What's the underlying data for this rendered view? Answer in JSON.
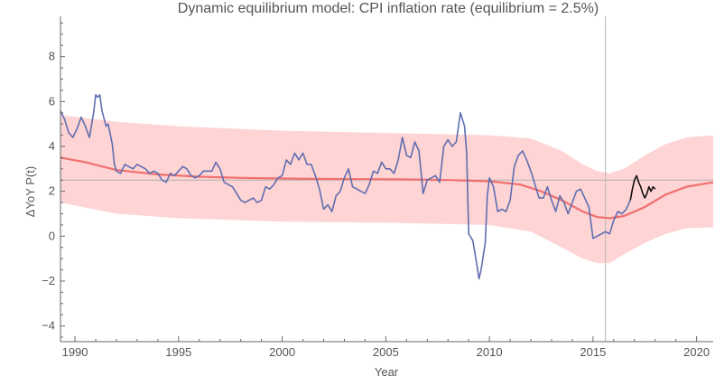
{
  "chart_data": {
    "type": "line",
    "title": "Dynamic equilibrium model: CPI inflation rate (equilibrium = 2.5%)",
    "xlabel": "Year",
    "ylabel": "ΔYoY P(t)",
    "xlim": [
      1989.3,
      2020.8
    ],
    "ylim": [
      -4.7,
      9.8
    ],
    "x_ticks": [
      1990,
      1995,
      2000,
      2005,
      2010,
      2015,
      2020
    ],
    "y_ticks": [
      -4,
      -2,
      0,
      2,
      4,
      6,
      8
    ],
    "x_tick_labels": [
      "1990",
      "1995",
      "2000",
      "2005",
      "2010",
      "2015",
      "2020"
    ],
    "y_tick_labels": [
      "−4",
      "−2",
      "0",
      "2",
      "4",
      "6",
      "8"
    ],
    "equilibrium_level": 2.5,
    "vertical_marker_x": 2015.6,
    "colors": {
      "data": "#5f6eb0",
      "post_data": "#111111",
      "model": "#f07070",
      "band": "#ffcccc"
    },
    "series": [
      {
        "values": [
          [
            1989.3,
            5.6
          ],
          [
            1989.5,
            5.2
          ],
          [
            1989.7,
            4.6
          ],
          [
            1989.9,
            4.4
          ],
          [
            1990.1,
            4.8
          ],
          [
            1990.3,
            5.3
          ],
          [
            1990.5,
            4.9
          ],
          [
            1990.7,
            4.4
          ],
          [
            1990.9,
            5.5
          ],
          [
            1991.0,
            6.3
          ],
          [
            1991.1,
            6.2
          ],
          [
            1991.2,
            6.3
          ],
          [
            1991.3,
            5.6
          ],
          [
            1991.5,
            4.9
          ],
          [
            1991.6,
            5.0
          ],
          [
            1991.8,
            4.1
          ],
          [
            1991.9,
            3.2
          ],
          [
            1992.0,
            2.9
          ],
          [
            1992.2,
            2.8
          ],
          [
            1992.4,
            3.2
          ],
          [
            1992.6,
            3.1
          ],
          [
            1992.8,
            3.0
          ],
          [
            1993.0,
            3.2
          ],
          [
            1993.2,
            3.1
          ],
          [
            1993.4,
            3.0
          ],
          [
            1993.6,
            2.8
          ],
          [
            1993.8,
            2.9
          ],
          [
            1994.0,
            2.8
          ],
          [
            1994.2,
            2.5
          ],
          [
            1994.4,
            2.4
          ],
          [
            1994.6,
            2.8
          ],
          [
            1994.8,
            2.7
          ],
          [
            1995.0,
            2.9
          ],
          [
            1995.2,
            3.1
          ],
          [
            1995.4,
            3.0
          ],
          [
            1995.6,
            2.7
          ],
          [
            1995.8,
            2.6
          ],
          [
            1996.0,
            2.7
          ],
          [
            1996.2,
            2.9
          ],
          [
            1996.4,
            2.9
          ],
          [
            1996.6,
            2.9
          ],
          [
            1996.8,
            3.3
          ],
          [
            1997.0,
            3.0
          ],
          [
            1997.2,
            2.4
          ],
          [
            1997.4,
            2.3
          ],
          [
            1997.6,
            2.2
          ],
          [
            1997.8,
            1.9
          ],
          [
            1998.0,
            1.6
          ],
          [
            1998.2,
            1.5
          ],
          [
            1998.4,
            1.6
          ],
          [
            1998.6,
            1.7
          ],
          [
            1998.8,
            1.5
          ],
          [
            1999.0,
            1.6
          ],
          [
            1999.2,
            2.2
          ],
          [
            1999.4,
            2.1
          ],
          [
            1999.6,
            2.3
          ],
          [
            1999.8,
            2.6
          ],
          [
            2000.0,
            2.7
          ],
          [
            2000.2,
            3.4
          ],
          [
            2000.4,
            3.2
          ],
          [
            2000.6,
            3.7
          ],
          [
            2000.8,
            3.4
          ],
          [
            2001.0,
            3.7
          ],
          [
            2001.2,
            3.2
          ],
          [
            2001.4,
            3.2
          ],
          [
            2001.6,
            2.7
          ],
          [
            2001.8,
            2.1
          ],
          [
            2002.0,
            1.2
          ],
          [
            2002.2,
            1.4
          ],
          [
            2002.4,
            1.1
          ],
          [
            2002.6,
            1.8
          ],
          [
            2002.8,
            2.0
          ],
          [
            2003.0,
            2.6
          ],
          [
            2003.2,
            3.0
          ],
          [
            2003.4,
            2.2
          ],
          [
            2003.6,
            2.1
          ],
          [
            2003.8,
            2.0
          ],
          [
            2004.0,
            1.9
          ],
          [
            2004.2,
            2.3
          ],
          [
            2004.4,
            2.9
          ],
          [
            2004.6,
            2.8
          ],
          [
            2004.8,
            3.3
          ],
          [
            2005.0,
            3.0
          ],
          [
            2005.2,
            3.0
          ],
          [
            2005.4,
            2.8
          ],
          [
            2005.6,
            3.4
          ],
          [
            2005.8,
            4.4
          ],
          [
            2006.0,
            3.6
          ],
          [
            2006.2,
            3.5
          ],
          [
            2006.4,
            4.2
          ],
          [
            2006.6,
            3.8
          ],
          [
            2006.8,
            1.9
          ],
          [
            2007.0,
            2.5
          ],
          [
            2007.2,
            2.6
          ],
          [
            2007.4,
            2.7
          ],
          [
            2007.6,
            2.4
          ],
          [
            2007.8,
            4.0
          ],
          [
            2008.0,
            4.3
          ],
          [
            2008.2,
            4.0
          ],
          [
            2008.4,
            4.2
          ],
          [
            2008.6,
            5.5
          ],
          [
            2008.8,
            4.9
          ],
          [
            2008.9,
            3.7
          ],
          [
            2009.0,
            0.1
          ],
          [
            2009.2,
            -0.2
          ],
          [
            2009.4,
            -1.3
          ],
          [
            2009.5,
            -1.9
          ],
          [
            2009.6,
            -1.5
          ],
          [
            2009.8,
            -0.3
          ],
          [
            2009.9,
            1.8
          ],
          [
            2010.0,
            2.6
          ],
          [
            2010.2,
            2.2
          ],
          [
            2010.4,
            1.1
          ],
          [
            2010.6,
            1.2
          ],
          [
            2010.8,
            1.1
          ],
          [
            2011.0,
            1.6
          ],
          [
            2011.2,
            3.1
          ],
          [
            2011.4,
            3.6
          ],
          [
            2011.6,
            3.8
          ],
          [
            2011.8,
            3.4
          ],
          [
            2012.0,
            2.9
          ],
          [
            2012.2,
            2.3
          ],
          [
            2012.4,
            1.7
          ],
          [
            2012.6,
            1.7
          ],
          [
            2012.8,
            2.2
          ],
          [
            2013.0,
            1.6
          ],
          [
            2013.2,
            1.1
          ],
          [
            2013.4,
            1.8
          ],
          [
            2013.6,
            1.5
          ],
          [
            2013.8,
            1.0
          ],
          [
            2014.0,
            1.5
          ],
          [
            2014.2,
            2.0
          ],
          [
            2014.4,
            2.1
          ],
          [
            2014.6,
            1.7
          ],
          [
            2014.8,
            1.3
          ],
          [
            2015.0,
            -0.1
          ],
          [
            2015.2,
            0.0
          ],
          [
            2015.4,
            0.1
          ],
          [
            2015.6,
            0.2
          ],
          [
            2015.8,
            0.1
          ],
          [
            2016.0,
            0.7
          ],
          [
            2016.2,
            1.1
          ],
          [
            2016.4,
            1.0
          ],
          [
            2016.6,
            1.2
          ],
          [
            2016.8,
            1.6
          ]
        ]
      },
      {
        "values": [
          [
            2016.8,
            1.6
          ],
          [
            2016.9,
            2.1
          ],
          [
            2017.0,
            2.5
          ],
          [
            2017.1,
            2.7
          ],
          [
            2017.2,
            2.4
          ],
          [
            2017.3,
            2.2
          ],
          [
            2017.4,
            1.9
          ],
          [
            2017.5,
            1.7
          ],
          [
            2017.6,
            1.9
          ],
          [
            2017.7,
            2.2
          ],
          [
            2017.8,
            2.0
          ],
          [
            2017.9,
            2.2
          ],
          [
            2018.0,
            2.1
          ]
        ]
      },
      {
        "values": [
          [
            1989.3,
            3.5
          ],
          [
            1990.5,
            3.3
          ],
          [
            1992.0,
            2.95
          ],
          [
            1994.0,
            2.75
          ],
          [
            1996.0,
            2.65
          ],
          [
            1998.0,
            2.6
          ],
          [
            2000.0,
            2.57
          ],
          [
            2002.0,
            2.55
          ],
          [
            2004.0,
            2.54
          ],
          [
            2006.0,
            2.53
          ],
          [
            2008.0,
            2.5
          ],
          [
            2010.0,
            2.45
          ],
          [
            2011.5,
            2.3
          ],
          [
            2012.5,
            2.0
          ],
          [
            2013.5,
            1.6
          ],
          [
            2014.5,
            1.1
          ],
          [
            2015.2,
            0.85
          ],
          [
            2015.8,
            0.8
          ],
          [
            2016.5,
            0.9
          ],
          [
            2017.5,
            1.3
          ],
          [
            2018.5,
            1.85
          ],
          [
            2019.5,
            2.2
          ],
          [
            2020.8,
            2.4
          ]
        ]
      }
    ],
    "band_upper": [
      [
        1989.3,
        5.4
      ],
      [
        1992.0,
        5.1
      ],
      [
        1995.0,
        4.9
      ],
      [
        2000.0,
        4.7
      ],
      [
        2005.0,
        4.6
      ],
      [
        2010.0,
        4.5
      ],
      [
        2012.0,
        4.35
      ],
      [
        2013.5,
        3.8
      ],
      [
        2014.5,
        3.2
      ],
      [
        2015.2,
        2.9
      ],
      [
        2015.8,
        2.8
      ],
      [
        2016.5,
        3.0
      ],
      [
        2017.5,
        3.6
      ],
      [
        2018.5,
        4.1
      ],
      [
        2019.5,
        4.4
      ],
      [
        2020.8,
        4.5
      ]
    ],
    "band_lower": [
      [
        1989.3,
        1.5
      ],
      [
        1992.0,
        1.0
      ],
      [
        1995.0,
        0.8
      ],
      [
        2000.0,
        0.65
      ],
      [
        2005.0,
        0.6
      ],
      [
        2010.0,
        0.5
      ],
      [
        2012.0,
        0.2
      ],
      [
        2013.5,
        -0.5
      ],
      [
        2014.5,
        -1.0
      ],
      [
        2015.2,
        -1.2
      ],
      [
        2015.8,
        -1.2
      ],
      [
        2016.5,
        -0.8
      ],
      [
        2017.5,
        -0.3
      ],
      [
        2018.5,
        0.1
      ],
      [
        2019.5,
        0.35
      ],
      [
        2020.8,
        0.4
      ]
    ]
  }
}
